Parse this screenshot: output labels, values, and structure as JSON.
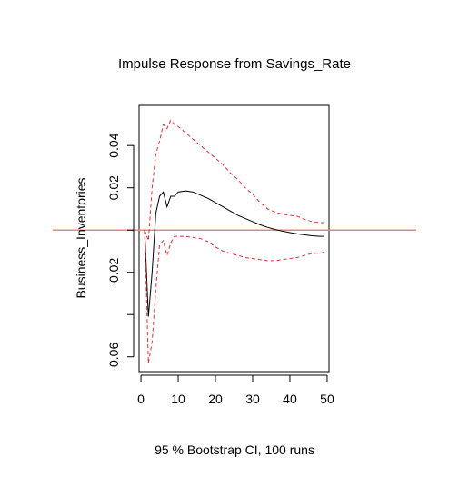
{
  "chart_data": {
    "type": "line",
    "title": "Impulse Response from Savings_Rate",
    "ylabel": "Business_Inventories",
    "subtitle": "95 % Bootstrap CI,  100 runs",
    "xlim": [
      -0.5,
      50.5
    ],
    "ylim": [
      -0.067,
      0.059
    ],
    "x_ticks": [
      0,
      10,
      20,
      30,
      40,
      50
    ],
    "y_ticks": [
      -0.06,
      -0.02,
      0.02,
      0.04
    ],
    "y_tick_marks": [
      -0.06,
      -0.04,
      -0.02,
      0,
      0.02,
      0.04
    ],
    "x_tick_labels": [
      "0",
      "10",
      "20",
      "30",
      "40",
      "50"
    ],
    "y_tick_labels": [
      "-0.06",
      "-0.02",
      "0.02",
      "0.04"
    ],
    "reference_line": {
      "y": 0,
      "color": "#f08080"
    },
    "colors": {
      "response": "#000000",
      "ci": "#dd3333"
    },
    "x": [
      1,
      2,
      3,
      4,
      5,
      6,
      7,
      8,
      9,
      10,
      12,
      14,
      16,
      18,
      20,
      22,
      24,
      26,
      28,
      30,
      32,
      34,
      36,
      38,
      40,
      42,
      44,
      46,
      48,
      49
    ],
    "series": [
      {
        "role": "response",
        "values": [
          0.0,
          -0.041,
          -0.02,
          0.008,
          0.016,
          0.018,
          0.011,
          0.016,
          0.016,
          0.018,
          0.0185,
          0.018,
          0.0165,
          0.015,
          0.013,
          0.011,
          0.009,
          0.007,
          0.0055,
          0.004,
          0.0025,
          0.0013,
          0.0003,
          -0.0005,
          -0.0012,
          -0.0018,
          -0.0023,
          -0.0027,
          -0.003,
          -0.003
        ]
      },
      {
        "role": "upper",
        "values": [
          0.0,
          -0.005,
          0.02,
          0.036,
          0.042,
          0.05,
          0.048,
          0.052,
          0.05,
          0.049,
          0.046,
          0.043,
          0.04,
          0.037,
          0.034,
          0.031,
          0.027,
          0.024,
          0.02,
          0.017,
          0.013,
          0.01,
          0.0085,
          0.0075,
          0.007,
          0.0065,
          0.005,
          0.004,
          0.0035,
          0.0035
        ]
      },
      {
        "role": "lower",
        "values": [
          0.0,
          -0.063,
          -0.053,
          -0.028,
          -0.007,
          -0.005,
          -0.012,
          -0.006,
          -0.003,
          -0.003,
          -0.003,
          -0.0035,
          -0.004,
          -0.0055,
          -0.008,
          -0.01,
          -0.011,
          -0.012,
          -0.013,
          -0.0135,
          -0.014,
          -0.0145,
          -0.0145,
          -0.014,
          -0.0135,
          -0.013,
          -0.012,
          -0.011,
          -0.011,
          -0.0105
        ]
      }
    ]
  }
}
